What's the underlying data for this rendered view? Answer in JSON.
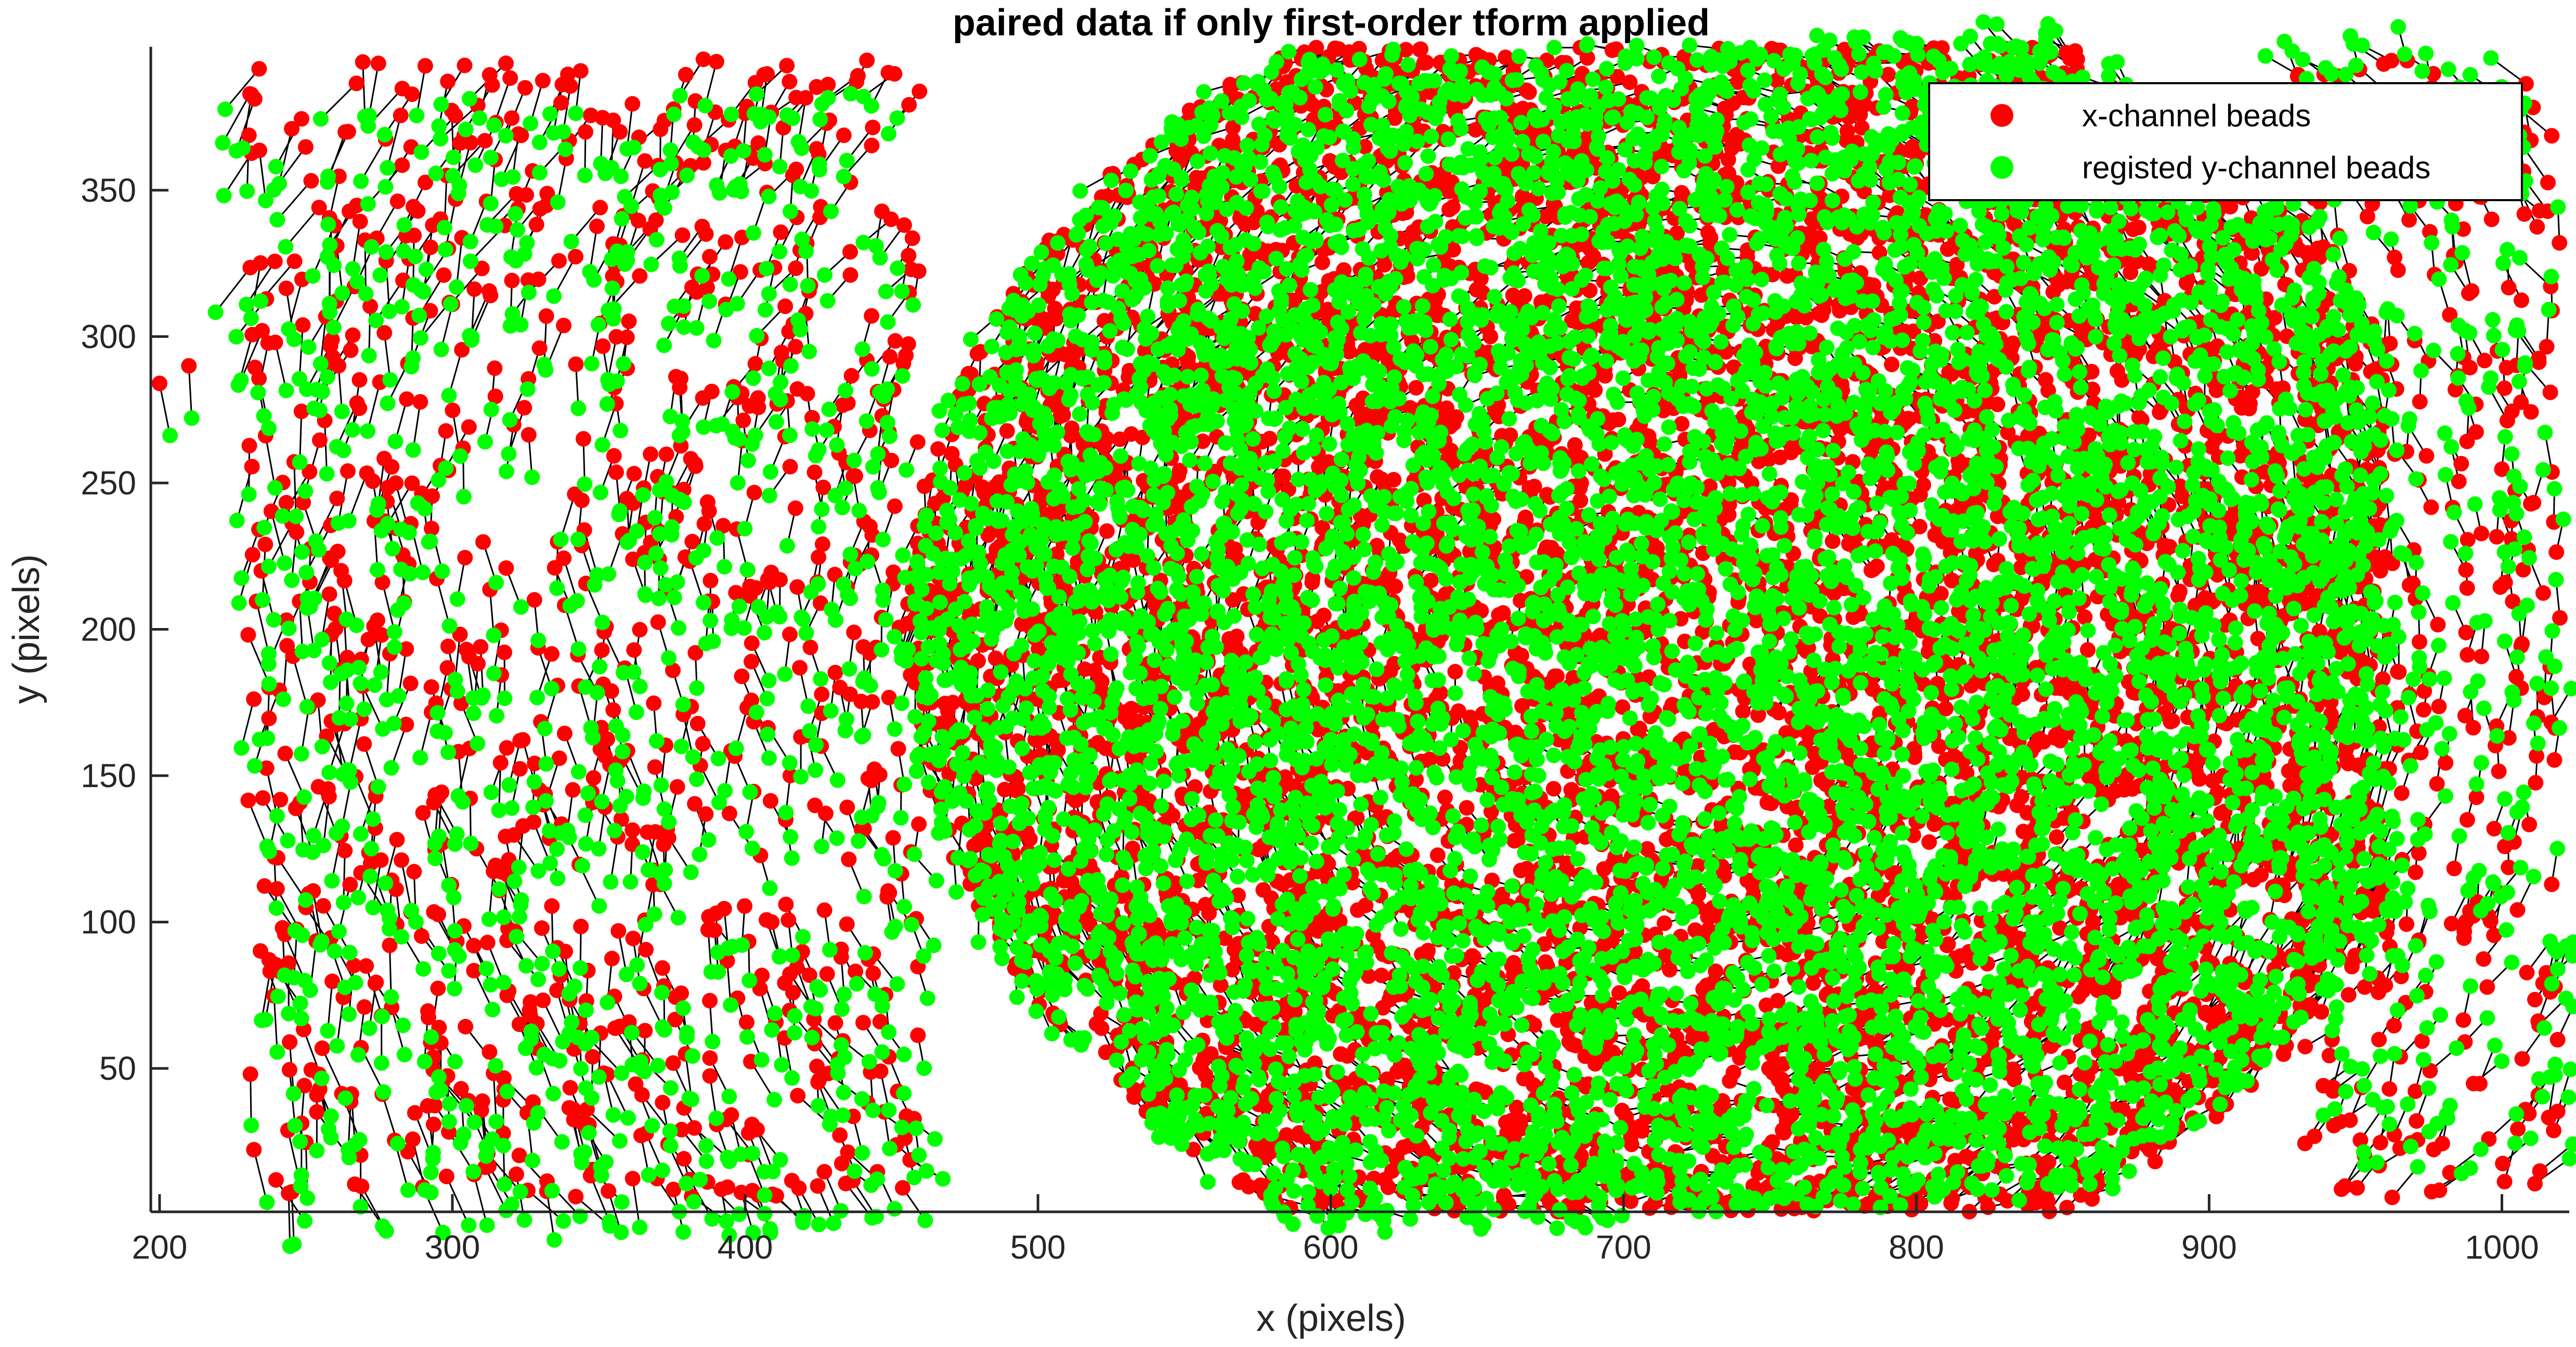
{
  "chart_data": {
    "type": "scatter",
    "title": "paired data if only first-order tform applied",
    "xlabel": "x (pixels)",
    "ylabel": "y (pixels)",
    "xlim": [
      197,
      1023
    ],
    "ylim": [
      1,
      399
    ],
    "xticks": [
      200,
      300,
      400,
      500,
      600,
      700,
      800,
      900,
      1000
    ],
    "yticks": [
      50,
      100,
      150,
      200,
      250,
      300,
      350
    ],
    "grid": false,
    "legend_position": "top-right",
    "series": [
      {
        "name": "x-channel beads",
        "color": "#ff0000",
        "marker": "filled-circle"
      },
      {
        "name": "registed y-channel beads",
        "color": "#00ff00",
        "marker": "filled-circle"
      }
    ],
    "pair_lines": {
      "color": "#000000"
    },
    "cluster_center_approx": [
      720,
      200
    ],
    "dense_region_x_range": [
      430,
      960
    ],
    "displacement_pattern": "rotational (tangential around center), increasing with radius",
    "approx_pair_count": 9000
  }
}
